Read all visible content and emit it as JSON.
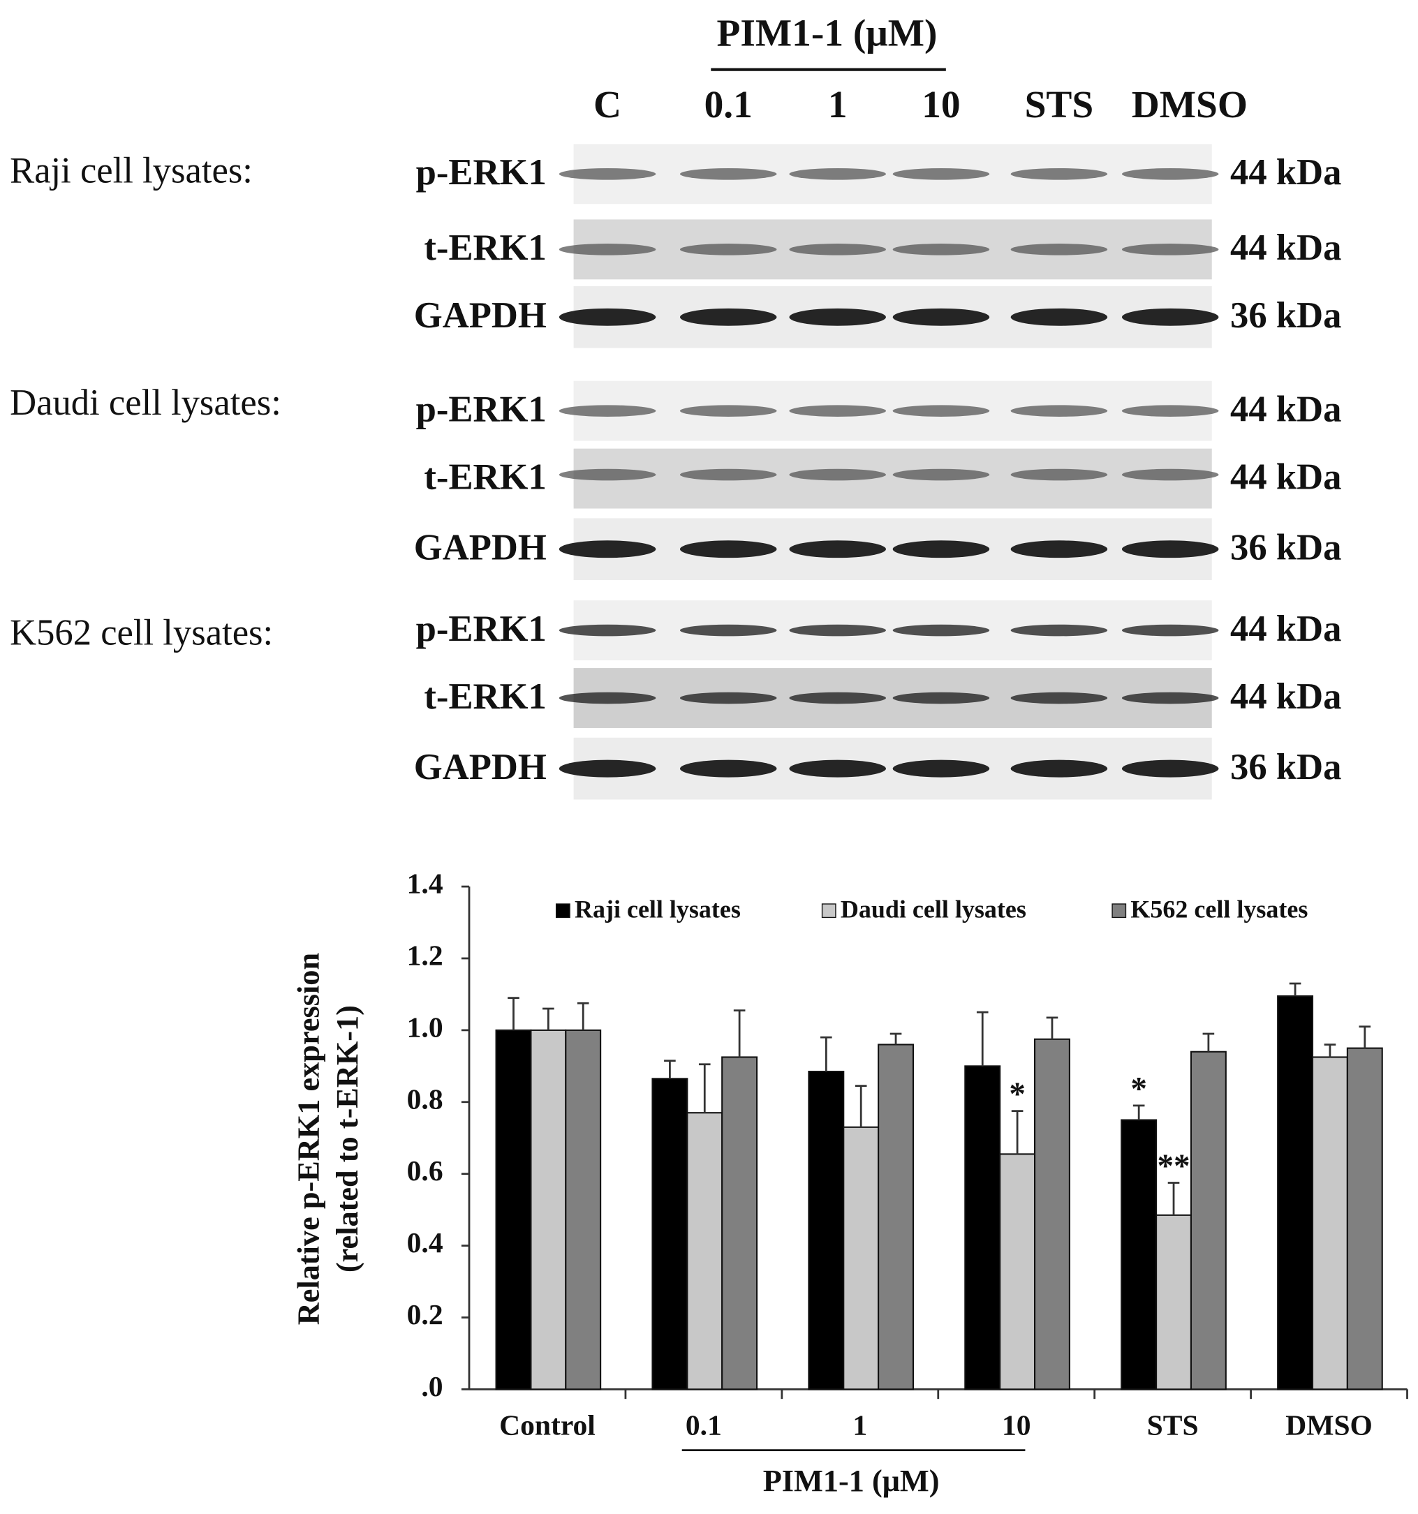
{
  "blot": {
    "header": "PIM1-1 (μM)",
    "lanes": [
      "C",
      "0.1",
      "1",
      "10",
      "STS",
      "DMSO"
    ],
    "panels": [
      {
        "label": "Raji cell lysates:",
        "rows": [
          {
            "protein": "p-ERK1",
            "size": "44 kDa"
          },
          {
            "protein": "t-ERK1",
            "size": "44 kDa"
          },
          {
            "protein": "GAPDH",
            "size": "36 kDa"
          }
        ]
      },
      {
        "label": "Daudi cell lysates:",
        "rows": [
          {
            "protein": "p-ERK1",
            "size": "44 kDa"
          },
          {
            "protein": "t-ERK1",
            "size": "44 kDa"
          },
          {
            "protein": "GAPDH",
            "size": "36 kDa"
          }
        ]
      },
      {
        "label": "K562 cell lysates:",
        "rows": [
          {
            "protein": "p-ERK1",
            "size": "44 kDa"
          },
          {
            "protein": "t-ERK1",
            "size": "44 kDa"
          },
          {
            "protein": "GAPDH",
            "size": "36 kDa"
          }
        ]
      }
    ]
  },
  "chart_data": {
    "type": "bar",
    "ylabel": [
      "Relative p-ERK1 expression",
      "(related to t-ERK-1)"
    ],
    "xgroup_label": "PIM1-1 (μM)",
    "categories": [
      "Control",
      "0.1",
      "1",
      "10",
      "STS",
      "DMSO"
    ],
    "ylim": [
      0,
      1.4
    ],
    "yticks": [
      {
        "value": 0,
        "label": ".0"
      },
      0.2,
      0.4,
      0.6,
      0.8,
      {
        "value": 1,
        "label": "1.0"
      },
      1.2,
      1.4
    ],
    "grid": false,
    "legend": "top",
    "series": [
      {
        "name": "Raji cell lysates",
        "color": "#000000",
        "values": [
          1.0,
          0.865,
          0.885,
          0.9,
          0.75,
          1.095
        ],
        "errors": [
          0.09,
          0.05,
          0.095,
          0.15,
          0.04,
          0.035
        ],
        "markers": [
          null,
          null,
          null,
          null,
          "*",
          null
        ]
      },
      {
        "name": "Daudi cell lysates",
        "color": "#c8c8c8",
        "values": [
          1.0,
          0.77,
          0.73,
          0.655,
          0.485,
          0.925
        ],
        "errors": [
          0.06,
          0.135,
          0.115,
          0.12,
          0.09,
          0.035
        ],
        "markers": [
          null,
          null,
          null,
          "*",
          "**",
          null
        ]
      },
      {
        "name": "K562 cell lysates",
        "color": "#808080",
        "values": [
          1.0,
          0.925,
          0.96,
          0.975,
          0.94,
          0.95
        ],
        "errors": [
          0.075,
          0.13,
          0.03,
          0.06,
          0.05,
          0.06
        ],
        "markers": [
          null,
          null,
          null,
          null,
          null,
          null
        ]
      }
    ]
  }
}
